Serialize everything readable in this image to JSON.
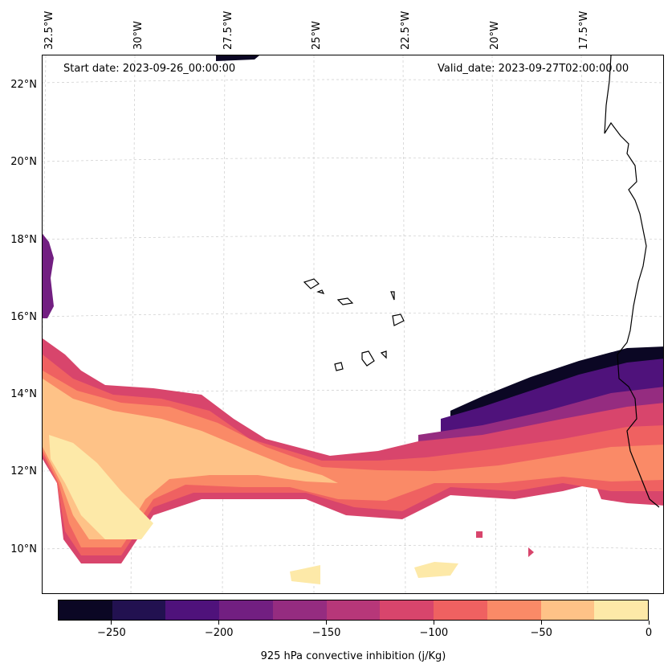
{
  "map": {
    "start_date": "Start date: 2023-09-26_00:00:00",
    "valid_date": "Valid_date: 2023-09-27T02:00:00.00",
    "lon_labels": [
      "32.5°W",
      "30°W",
      "27.5°W",
      "25°W",
      "22.5°W",
      "20°W",
      "17.5°W"
    ],
    "lat_labels": [
      "22°N",
      "20°N",
      "18°N",
      "16°N",
      "14°N",
      "12°N",
      "10°N"
    ],
    "gridlines": true,
    "variable": "925 hPa convective inhibition (j/Kg)"
  },
  "colorbar": {
    "title": "925 hPa convective inhibition (j/Kg)",
    "levels": [
      -275,
      -250,
      -225,
      -200,
      -175,
      -150,
      -125,
      -100,
      -75,
      -50,
      -25,
      0
    ],
    "tick_values": [
      -250,
      -200,
      -150,
      -100,
      -50,
      0
    ],
    "tick_labels": [
      "−250",
      "−200",
      "−150",
      "−100",
      "−50",
      "0"
    ],
    "colors": [
      "#0b0724",
      "#221150",
      "#4f127b",
      "#721f81",
      "#952c80",
      "#b73779",
      "#d8456c",
      "#ef6161",
      "#fa8a67",
      "#fec287",
      "#fde9a8"
    ]
  }
}
